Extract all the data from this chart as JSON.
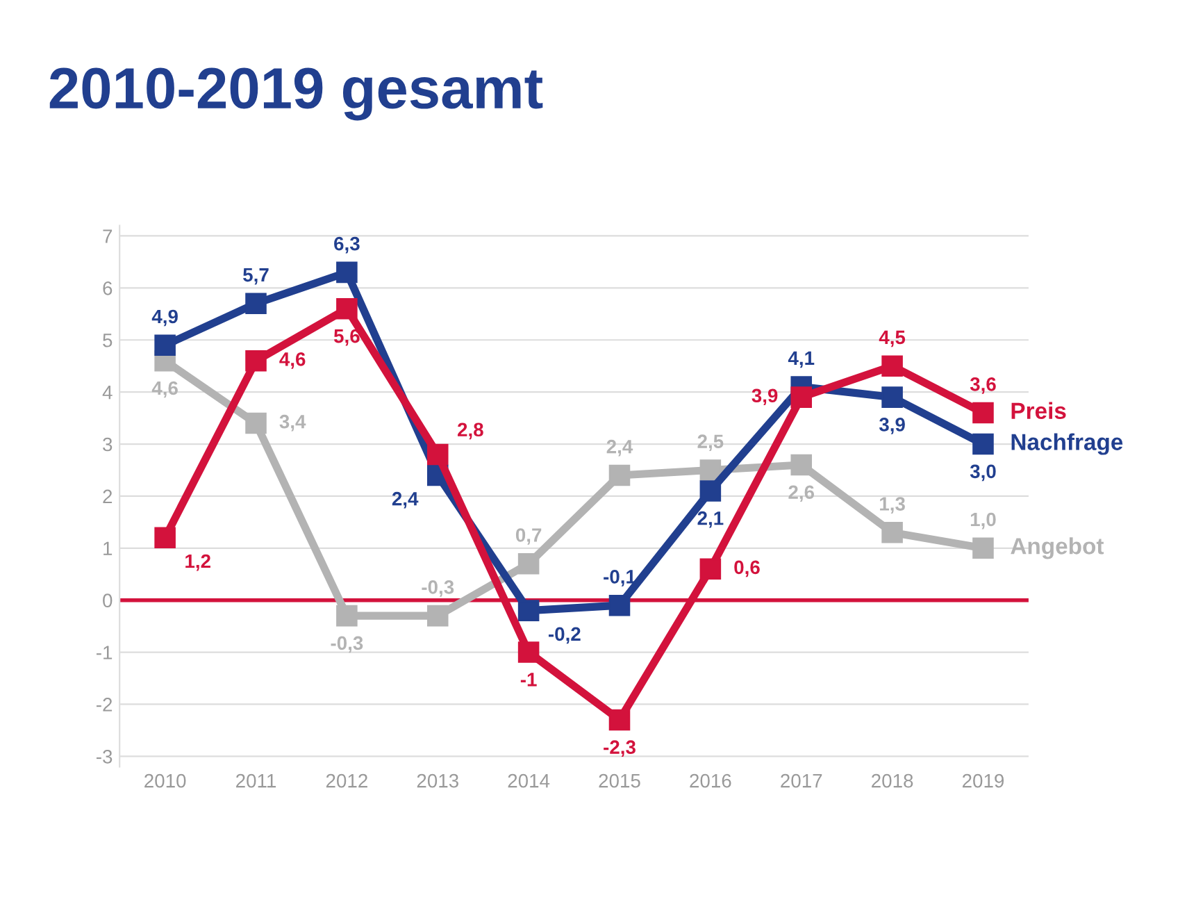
{
  "chart_data": {
    "type": "line",
    "title": "2010-2019 gesamt",
    "categories": [
      "2010",
      "2011",
      "2012",
      "2013",
      "2014",
      "2015",
      "2016",
      "2017",
      "2018",
      "2019"
    ],
    "series": [
      {
        "name": "Angebot",
        "color": "#b3b3b3",
        "values": [
          4.6,
          3.4,
          -0.3,
          -0.3,
          0.7,
          2.4,
          2.5,
          2.6,
          1.3,
          1.0
        ],
        "value_labels": [
          "4,6",
          "3,4",
          "-0,3",
          "-0,3",
          "0,7",
          "2,4",
          "2,5",
          "2,6",
          "1,3",
          "1,0"
        ]
      },
      {
        "name": "Nachfrage",
        "color": "#213f8f",
        "values": [
          4.9,
          5.7,
          6.3,
          2.4,
          -0.2,
          -0.1,
          2.1,
          4.1,
          3.9,
          3.0
        ],
        "value_labels": [
          "4,9",
          "5,7",
          "6,3",
          "2,4",
          "-0,2",
          "-0,1",
          "2,1",
          "4,1",
          "3,9",
          "3,0"
        ]
      },
      {
        "name": "Preis",
        "color": "#d3123c",
        "values": [
          1.2,
          4.6,
          5.6,
          2.8,
          -1,
          -2.3,
          0.6,
          3.9,
          4.5,
          3.6
        ],
        "value_labels": [
          "1,2",
          "4,6",
          "5,6",
          "2,8",
          "-1",
          "-2,3",
          "0,6",
          "3,9",
          "4,5",
          "3,6"
        ]
      }
    ],
    "ylim": [
      -3.2,
      7.2
    ],
    "yticks": [
      -3,
      -2,
      -1,
      0,
      1,
      2,
      3,
      4,
      5,
      6,
      7
    ],
    "ref_lines": [
      {
        "axis": "y",
        "value": 0,
        "color": "#d3123c"
      }
    ],
    "grid": "y",
    "legend": false,
    "marker": "square",
    "line_style": "solid"
  }
}
